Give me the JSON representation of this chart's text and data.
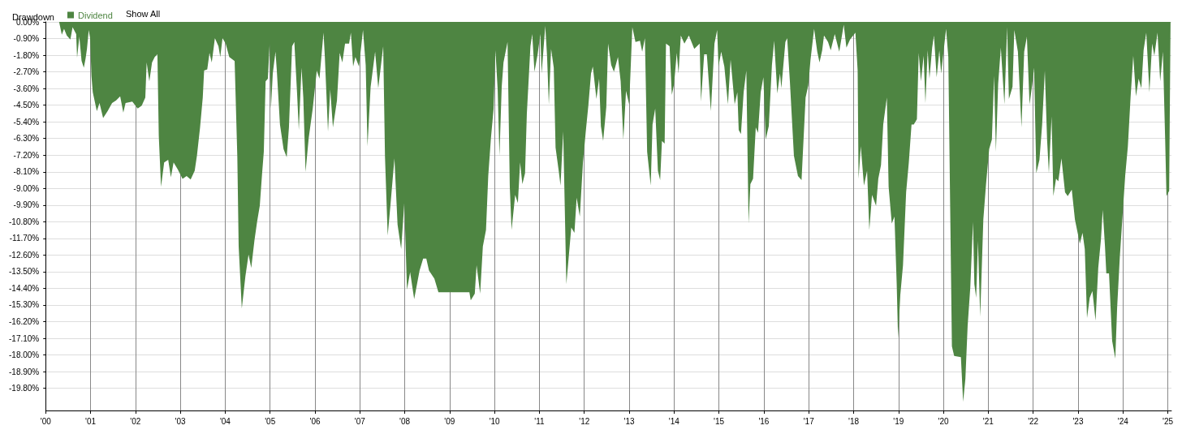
{
  "chart_data": {
    "type": "area",
    "title": "Drawdown",
    "annotations": [
      "Show All"
    ],
    "xlim": [
      2000,
      2025.08
    ],
    "xticks": [
      {
        "value": 2000,
        "label": "'00"
      },
      {
        "value": 2001,
        "label": "'01"
      },
      {
        "value": 2002,
        "label": "'02"
      },
      {
        "value": 2003,
        "label": "'03"
      },
      {
        "value": 2004,
        "label": "'04"
      },
      {
        "value": 2005,
        "label": "'05"
      },
      {
        "value": 2006,
        "label": "'06"
      },
      {
        "value": 2007,
        "label": "'07"
      },
      {
        "value": 2008,
        "label": "'08"
      },
      {
        "value": 2009,
        "label": "'09"
      },
      {
        "value": 2010,
        "label": "'10"
      },
      {
        "value": 2011,
        "label": "'11"
      },
      {
        "value": 2012,
        "label": "'12"
      },
      {
        "value": 2013,
        "label": "'13"
      },
      {
        "value": 2014,
        "label": "'14"
      },
      {
        "value": 2015,
        "label": "'15"
      },
      {
        "value": 2016,
        "label": "'16"
      },
      {
        "value": 2017,
        "label": "'17"
      },
      {
        "value": 2018,
        "label": "'18"
      },
      {
        "value": 2019,
        "label": "'19"
      },
      {
        "value": 2020,
        "label": "'20"
      },
      {
        "value": 2021,
        "label": "'21"
      },
      {
        "value": 2022,
        "label": "'22"
      },
      {
        "value": 2023,
        "label": "'23"
      },
      {
        "value": 2024,
        "label": "'24"
      },
      {
        "value": 2025,
        "label": "'25"
      }
    ],
    "ylim": [
      -21,
      0
    ],
    "yticks": [
      {
        "value": 0,
        "label": "0.00%"
      },
      {
        "value": -0.9,
        "label": "-0.90%"
      },
      {
        "value": -1.8,
        "label": "-1.80%"
      },
      {
        "value": -2.7,
        "label": "-2.70%"
      },
      {
        "value": -3.6,
        "label": "-3.60%"
      },
      {
        "value": -4.5,
        "label": "-4.50%"
      },
      {
        "value": -5.4,
        "label": "-5.40%"
      },
      {
        "value": -6.3,
        "label": "-6.30%"
      },
      {
        "value": -7.2,
        "label": "-7.20%"
      },
      {
        "value": -8.1,
        "label": "-8.10%"
      },
      {
        "value": -9,
        "label": "-9.00%"
      },
      {
        "value": -9.9,
        "label": "-9.90%"
      },
      {
        "value": -10.8,
        "label": "-10.80%"
      },
      {
        "value": -11.7,
        "label": "-11.70%"
      },
      {
        "value": -12.6,
        "label": "-12.60%"
      },
      {
        "value": -13.5,
        "label": "-13.50%"
      },
      {
        "value": -14.4,
        "label": "-14.40%"
      },
      {
        "value": -15.3,
        "label": "-15.30%"
      },
      {
        "value": -16.2,
        "label": "-16.20%"
      },
      {
        "value": -17.1,
        "label": "-17.10%"
      },
      {
        "value": -18,
        "label": "-18.00%"
      },
      {
        "value": -18.9,
        "label": "-18.90%"
      },
      {
        "value": -19.8,
        "label": "-19.80%"
      }
    ],
    "grid": true,
    "legend": "top left",
    "series": [
      {
        "name": "Dividend",
        "color": "#4e8542",
        "x": [
          2000.3,
          2000.36,
          2000.41,
          2000.47,
          2000.55,
          2000.6,
          2000.68,
          2000.7,
          2000.75,
          2000.8,
          2000.85,
          2000.89,
          2000.92,
          2000.96,
          2000.99,
          2001.02,
          2001.05,
          2001.14,
          2001.2,
          2001.28,
          2001.38,
          2001.48,
          2001.57,
          2001.66,
          2001.73,
          2001.78,
          2001.93,
          2002.05,
          2002.14,
          2002.22,
          2002.25,
          2002.31,
          2002.37,
          2002.43,
          2002.49,
          2002.52,
          2002.57,
          2002.64,
          2002.73,
          2002.79,
          2002.85,
          2002.94,
          2003.05,
          2003.14,
          2003.23,
          2003.32,
          2003.37,
          2003.44,
          2003.5,
          2003.53,
          2003.6,
          2003.65,
          2003.7,
          2003.74,
          2003.77,
          2003.85,
          2003.89,
          2003.94,
          2004.01,
          2004.09,
          2004.21,
          2004.27,
          2004.3,
          2004.37,
          2004.45,
          2004.52,
          2004.58,
          2004.65,
          2004.71,
          2004.77,
          2004.82,
          2004.86,
          2004.9,
          2004.95,
          2004.99,
          2005.02,
          2005.06,
          2005.12,
          2005.15,
          2005.22,
          2005.3,
          2005.37,
          2005.42,
          2005.49,
          2005.54,
          2005.6,
          2005.64,
          2005.7,
          2005.74,
          2005.79,
          2005.86,
          2005.95,
          2006.04,
          2006.1,
          2006.19,
          2006.22,
          2006.29,
          2006.34,
          2006.4,
          2006.49,
          2006.55,
          2006.61,
          2006.67,
          2006.76,
          2006.8,
          2006.85,
          2006.9,
          2006.98,
          2007.07,
          2007.13,
          2007.17,
          2007.24,
          2007.34,
          2007.41,
          2007.52,
          2007.56,
          2007.62,
          2007.68,
          2007.77,
          2007.84,
          2007.92,
          2007.99,
          2008.05,
          2008.12,
          2008.21,
          2008.33,
          2008.41,
          2008.48,
          2008.54,
          2008.66,
          2008.75,
          2009.44,
          2009.47,
          2009.56,
          2009.6,
          2009.68,
          2009.74,
          2009.81,
          2009.86,
          2009.92,
          2009.98,
          2010.02,
          2010.07,
          2010.11,
          2010.16,
          2010.2,
          2010.29,
          2010.34,
          2010.38,
          2010.46,
          2010.52,
          2010.57,
          2010.62,
          2010.68,
          2010.72,
          2010.8,
          2010.84,
          2010.89,
          2010.96,
          2011.02,
          2011.05,
          2011.13,
          2011.17,
          2011.21,
          2011.26,
          2011.32,
          2011.36,
          2011.43,
          2011.47,
          2011.53,
          2011.6,
          2011.65,
          2011.71,
          2011.78,
          2011.83,
          2011.9,
          2011.97,
          2012.03,
          2012.09,
          2012.15,
          2012.19,
          2012.27,
          2012.33,
          2012.37,
          2012.42,
          2012.49,
          2012.53,
          2012.6,
          2012.66,
          2012.75,
          2012.81,
          2012.87,
          2012.93,
          2013,
          2013.07,
          2013.14,
          2013.24,
          2013.29,
          2013.35,
          2013.4,
          2013.48,
          2013.52,
          2013.58,
          2013.64,
          2013.69,
          2013.73,
          2013.79,
          2013.82,
          2013.9,
          2013.95,
          2014,
          2014.06,
          2014.1,
          2014.15,
          2014.23,
          2014.33,
          2014.45,
          2014.57,
          2014.6,
          2014.67,
          2014.73,
          2014.82,
          2014.9,
          2014.96,
          2014.99,
          2015.05,
          2015.12,
          2015.2,
          2015.26,
          2015.35,
          2015.41,
          2015.44,
          2015.49,
          2015.55,
          2015.61,
          2015.66,
          2015.7,
          2015.76,
          2015.82,
          2015.87,
          2015.93,
          2015.99,
          2016.04,
          2016.11,
          2016.18,
          2016.23,
          2016.3,
          2016.36,
          2016.39,
          2016.48,
          2016.52,
          2016.58,
          2016.67,
          2016.76,
          2016.84,
          2016.93,
          2016.99,
          2017.04,
          2017.12,
          2017.19,
          2017.24,
          2017.3,
          2017.34,
          2017.43,
          2017.49,
          2017.58,
          2017.68,
          2017.78,
          2017.84,
          2017.92,
          2018.04,
          2018.09,
          2018.11,
          2018.16,
          2018.23,
          2018.3,
          2018.35,
          2018.41,
          2018.5,
          2018.55,
          2018.61,
          2018.66,
          2018.74,
          2018.78,
          2018.85,
          2018.91,
          2018.96,
          2018.99,
          2019.04,
          2019.1,
          2019.17,
          2019.23,
          2019.29,
          2019.34,
          2019.41,
          2019.45,
          2019.5,
          2019.56,
          2019.6,
          2019.65,
          2019.69,
          2019.75,
          2019.79,
          2019.85,
          2019.91,
          2019.95,
          2020.06,
          2020.11,
          2020.15,
          2020.19,
          2020.24,
          2020.39,
          2020.44,
          2020.49,
          2020.54,
          2020.6,
          2020.66,
          2020.69,
          2020.73,
          2020.77,
          2020.82,
          2020.89,
          2020.95,
          2021.02,
          2021.08,
          2021.13,
          2021.17,
          2021.22,
          2021.28,
          2021.36,
          2021.42,
          2021.46,
          2021.54,
          2021.58,
          2021.66,
          2021.74,
          2021.8,
          2021.86,
          2021.92,
          2021.98,
          2022.02,
          2022.07,
          2022.14,
          2022.2,
          2022.26,
          2022.31,
          2022.35,
          2022.41,
          2022.45,
          2022.51,
          2022.56,
          2022.63,
          2022.71,
          2022.77,
          2022.86,
          2022.93,
          2023.04,
          2023.1,
          2023.15,
          2023.2,
          2023.26,
          2023.32,
          2023.39,
          2023.45,
          2023.51,
          2023.55,
          2023.6,
          2023.63,
          2023.69,
          2023.76,
          2023.83,
          2023.87,
          2023.93,
          2024.01,
          2024.05,
          2024.11,
          2024.17,
          2024.23,
          2024.29,
          2024.35,
          2024.41,
          2024.46,
          2024.52,
          2024.59,
          2024.65,
          2024.7,
          2024.77,
          2024.83,
          2024.89,
          2024.94,
          2024.97,
          2025.03,
          2025.06
        ],
        "values": [
          0,
          -0.69,
          -0.37,
          -0.73,
          -0.95,
          -0.29,
          -0.66,
          -1.93,
          -0.8,
          -2.1,
          -2.48,
          -1.97,
          -1.46,
          -0.44,
          -0.88,
          -2.92,
          -3.8,
          -4.82,
          -4.38,
          -5.19,
          -4.82,
          -4.38,
          -4.24,
          -4.02,
          -4.9,
          -4.38,
          -4.31,
          -4.68,
          -4.53,
          -4.09,
          -2.19,
          -3.21,
          -2.19,
          -1.9,
          -1.75,
          -6.14,
          -8.91,
          -7.6,
          -7.45,
          -8.4,
          -7.6,
          -7.96,
          -8.48,
          -8.33,
          -8.52,
          -8.04,
          -7.23,
          -5.7,
          -4.09,
          -2.63,
          -2.56,
          -1.68,
          -2.19,
          -1.46,
          -0.88,
          -1.32,
          -1.9,
          -0.88,
          -1.17,
          -1.9,
          -2.12,
          -7.3,
          -12.13,
          -15.49,
          -13.74,
          -12.57,
          -13.3,
          -11.84,
          -10.81,
          -9.94,
          -8.25,
          -7.01,
          -3.21,
          -3.07,
          -1.17,
          -4.68,
          -2.78,
          -1.61,
          -2.63,
          -5.55,
          -6.87,
          -7.31,
          -5.7,
          -1.31,
          -1.09,
          -3.8,
          -5.84,
          -2.48,
          -4.09,
          -8.11,
          -6.28,
          -4.68,
          -2.63,
          -3.07,
          -0.58,
          -1.9,
          -5.92,
          -3.65,
          -5.7,
          -4.24,
          -1.68,
          -2.19,
          -1.17,
          -1.17,
          -0.58,
          -2.41,
          -1.9,
          -2.41,
          -0.44,
          -2.34,
          -6.72,
          -3.51,
          -1.61,
          -3.58,
          -1.31,
          -7.31,
          -11.54,
          -9.94,
          -7.38,
          -10.96,
          -12.28,
          -9.79,
          -14.47,
          -13.52,
          -14.98,
          -13.44,
          -12.79,
          -12.79,
          -13.44,
          -13.88,
          -14.61,
          -14.61,
          -15.05,
          -14.69,
          -13.15,
          -14.69,
          -12.13,
          -11.25,
          -8.33,
          -6.28,
          -4.68,
          -1.53,
          -3.65,
          -7.23,
          -3.51,
          -2.19,
          -1.09,
          -8.91,
          -11.25,
          -9.35,
          -9.79,
          -7.6,
          -8.77,
          -8.18,
          -4.97,
          -1.31,
          -0.66,
          -2.7,
          -1.75,
          -0.66,
          -2.78,
          -0.22,
          -1.83,
          -4.46,
          -1.46,
          -2.48,
          -6.79,
          -8.04,
          -8.84,
          -5.92,
          -14.17,
          -12.79,
          -11.11,
          -11.4,
          -9.5,
          -10.52,
          -7.6,
          -5.99,
          -4.53,
          -2.78,
          -2.41,
          -4.16,
          -3.07,
          -5.63,
          -6.43,
          -4.6,
          -1.17,
          -2.34,
          -2.7,
          -1.9,
          -3.21,
          -6.36,
          -3.73,
          -4.46,
          -0.29,
          -1.09,
          -1.02,
          -1.61,
          -0.88,
          -7.01,
          -8.84,
          -5.55,
          -4.68,
          -8.04,
          -8.55,
          -6.43,
          -6.58,
          -1.17,
          -1.31,
          -3.95,
          -3.36,
          -1.68,
          -2.78,
          -0.73,
          -1.17,
          -0.73,
          -1.46,
          -1.17,
          -4.31,
          -1.75,
          -1.75,
          -4.82,
          -1.17,
          -0.44,
          -2.41,
          -1.61,
          -2.41,
          -4.46,
          -2.04,
          -4.46,
          -3.8,
          -5.84,
          -6.06,
          -3.8,
          -2.63,
          -10.89,
          -8.77,
          -8.47,
          -5.7,
          -5.99,
          -3.8,
          -2.99,
          -6.36,
          -5.63,
          -2.34,
          -1.02,
          -3.87,
          -2.78,
          -3.58,
          -1.09,
          -0.88,
          -3.21,
          -7.23,
          -8.33,
          -8.55,
          -4.09,
          -3.43,
          -2.04,
          -0.37,
          -1.61,
          -2.19,
          -1.53,
          -0.73,
          -1.09,
          -1.53,
          -0.66,
          -1.61,
          -0.15,
          -1.39,
          -0.95,
          -0.58,
          -2.63,
          -8.47,
          -6.72,
          -8.84,
          -8.04,
          -11.25,
          -9.35,
          -9.94,
          -8.47,
          -7.74,
          -5.55,
          -4.09,
          -8.91,
          -10.89,
          -10.52,
          -14.17,
          -17.1,
          -14.76,
          -13.15,
          -9.21,
          -7.6,
          -5.55,
          -5.55,
          -5.26,
          -1.68,
          -3.21,
          -1.83,
          -4.38,
          -1.53,
          -3.07,
          -1.39,
          -0.73,
          -2.99,
          -1.53,
          -2.78,
          -0.37,
          -1.9,
          -9.79,
          -17.54,
          -18.05,
          -18.12,
          -20.53,
          -19.29,
          -16.44,
          -14.32,
          -10.81,
          -14.17,
          -14.91,
          -11.84,
          -15.93,
          -10.67,
          -8.77,
          -6.87,
          -6.36,
          -2.92,
          -7.01,
          -3.36,
          -1.39,
          -4.46,
          -0.29,
          -4.16,
          -3.51,
          -0.44,
          -1.61,
          -5.7,
          -1.61,
          -0.8,
          -4.46,
          -3.36,
          -2.48,
          -8.18,
          -7.45,
          -5.55,
          -2.63,
          -6.36,
          -8.18,
          -5.11,
          -9.42,
          -8.47,
          -8.62,
          -7.38,
          -9.21,
          -9.42,
          -9.06,
          -10.67,
          -11.98,
          -11.4,
          -12.28,
          -16.0,
          -14.91,
          -14.54,
          -16.15,
          -13.3,
          -11.76,
          -10.16,
          -12.13,
          -13.59,
          -13.59,
          -17.24,
          -18.19,
          -15.49,
          -12.72,
          -9.79,
          -8.33,
          -6.72,
          -4.09,
          -1.83,
          -4.02,
          -3.07,
          -3.58,
          -1.53,
          -0.58,
          -3.8,
          -1.17,
          -1.83,
          -0.58,
          -3.21,
          -1.61,
          -6.28,
          -9.42,
          -9.13,
          -0.15
        ]
      }
    ]
  }
}
